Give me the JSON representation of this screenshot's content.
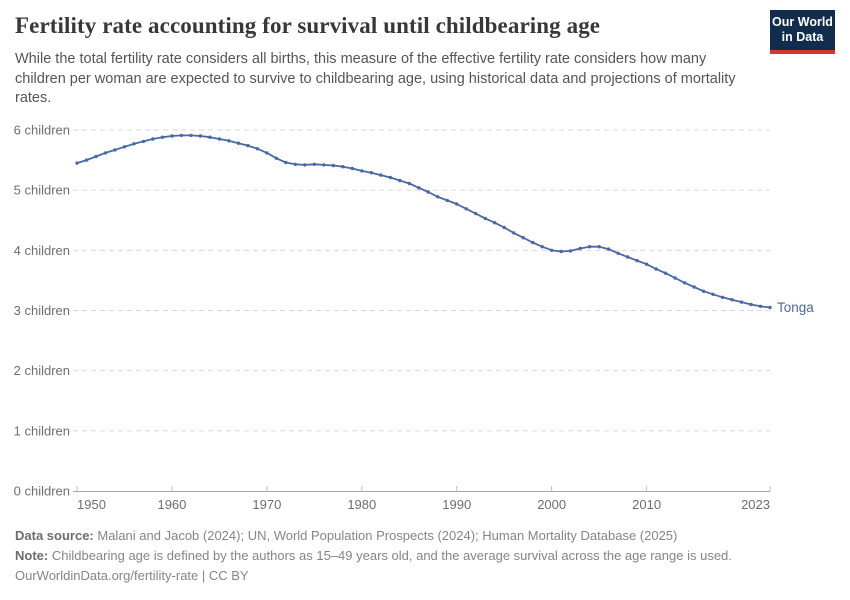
{
  "header": {
    "title": "Fertility rate accounting for survival until childbearing age",
    "subtitle": "While the total fertility rate considers all births, this measure of the effective fertility rate considers how many children per woman are expected to survive to childbearing age, using historical data and projections of mortality rates.",
    "logo": {
      "line1": "Our World",
      "line2": "in Data",
      "bg_color": "#102d4e",
      "stripe_color": "#d8352e"
    }
  },
  "chart_data": {
    "type": "line",
    "title": "Fertility rate accounting for survival until childbearing age",
    "xlabel": "",
    "ylabel": "",
    "xlim": [
      1950,
      2023
    ],
    "ylim": [
      0,
      6
    ],
    "x_ticks": [
      1950,
      1960,
      1970,
      1980,
      1990,
      2000,
      2010,
      2023
    ],
    "y_ticks": [
      0,
      1,
      2,
      3,
      4,
      5,
      6
    ],
    "y_tick_labels": [
      "0 children",
      "1 children",
      "2 children",
      "3 children",
      "4 children",
      "5 children",
      "6 children"
    ],
    "grid": "horizontal-dashed",
    "legend_position": "end-of-line-label",
    "series": [
      {
        "name": "Tonga",
        "color": "#4968a5",
        "x": [
          1950,
          1951,
          1952,
          1953,
          1954,
          1955,
          1956,
          1957,
          1958,
          1959,
          1960,
          1961,
          1962,
          1963,
          1964,
          1965,
          1966,
          1967,
          1968,
          1969,
          1970,
          1971,
          1972,
          1973,
          1974,
          1975,
          1976,
          1977,
          1978,
          1979,
          1980,
          1981,
          1982,
          1983,
          1984,
          1985,
          1986,
          1987,
          1988,
          1989,
          1990,
          1991,
          1992,
          1993,
          1994,
          1995,
          1996,
          1997,
          1998,
          1999,
          2000,
          2001,
          2002,
          2003,
          2004,
          2005,
          2006,
          2007,
          2008,
          2009,
          2010,
          2011,
          2012,
          2013,
          2014,
          2015,
          2016,
          2017,
          2018,
          2019,
          2020,
          2021,
          2022,
          2023
        ],
        "values": [
          5.45,
          5.5,
          5.56,
          5.62,
          5.67,
          5.72,
          5.77,
          5.81,
          5.85,
          5.88,
          5.9,
          5.91,
          5.91,
          5.9,
          5.88,
          5.85,
          5.82,
          5.78,
          5.74,
          5.69,
          5.62,
          5.53,
          5.46,
          5.43,
          5.42,
          5.43,
          5.42,
          5.41,
          5.39,
          5.36,
          5.32,
          5.29,
          5.25,
          5.21,
          5.16,
          5.11,
          5.04,
          4.97,
          4.89,
          4.83,
          4.77,
          4.69,
          4.61,
          4.53,
          4.46,
          4.38,
          4.29,
          4.21,
          4.13,
          4.06,
          4.0,
          3.98,
          3.99,
          4.03,
          4.06,
          4.06,
          4.02,
          3.95,
          3.89,
          3.83,
          3.77,
          3.69,
          3.62,
          3.54,
          3.46,
          3.39,
          3.32,
          3.27,
          3.22,
          3.18,
          3.14,
          3.1,
          3.07,
          3.05
        ]
      }
    ]
  },
  "footer": {
    "data_source_label": "Data source:",
    "data_source": "Malani and Jacob (2024); UN, World Population Prospects (2024); Human Mortality Database (2025)",
    "note_label": "Note:",
    "note": "Childbearing age is defined by the authors as 15–49 years old, and the average survival across the age range is used.",
    "license": "OurWorldinData.org/fertility-rate | CC BY"
  }
}
